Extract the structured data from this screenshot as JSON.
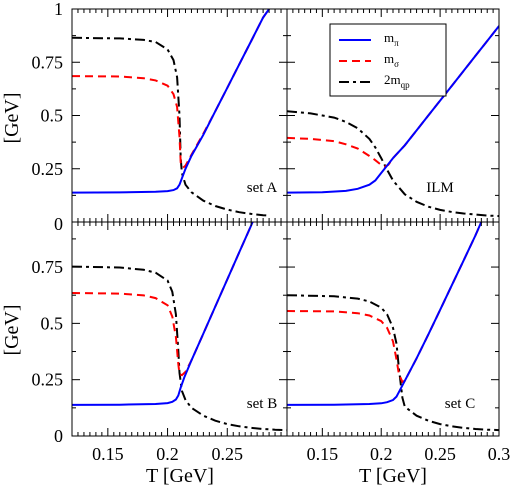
{
  "colors": {
    "m_pi": "#0000ff",
    "m_sigma": "#ff0000",
    "two_m_qp": "#000000"
  },
  "legend": {
    "placement": "top-right of upper-right panel",
    "entries": [
      {
        "key": "m_pi",
        "base": "m",
        "sub": "π",
        "style": "solid"
      },
      {
        "key": "m_sigma",
        "base": "m",
        "sub": "σ",
        "style": "dashed"
      },
      {
        "key": "two_m_qp",
        "base": "2m",
        "sub": "qp",
        "style": "dash-dot"
      }
    ]
  },
  "axes": {
    "xlabel": "T [GeV]",
    "ylabel": "[GeV]",
    "xlim": [
      0.12,
      0.3
    ],
    "ylim": [
      0,
      1
    ],
    "xticks_left": [
      "0.15",
      "0.2",
      "0.25"
    ],
    "xticks_right": [
      "0.15",
      "0.2",
      "0.25",
      "0.3"
    ],
    "yticks_top": [
      "0",
      "0.25",
      "0.5",
      "0.75",
      "1"
    ],
    "yticks_bottom": [
      "0",
      "0.25",
      "0.5",
      "0.75"
    ]
  },
  "chart_data": [
    {
      "type": "line",
      "panel": "top-left",
      "label": "set A",
      "series": [
        {
          "key": "m_pi",
          "x": [
            0.12,
            0.16,
            0.19,
            0.2,
            0.205,
            0.208,
            0.21,
            0.212,
            0.215,
            0.22,
            0.23,
            0.24,
            0.25,
            0.26,
            0.27,
            0.28,
            0.285
          ],
          "y": [
            0.138,
            0.139,
            0.142,
            0.145,
            0.15,
            0.158,
            0.175,
            0.205,
            0.25,
            0.31,
            0.41,
            0.52,
            0.63,
            0.74,
            0.85,
            0.96,
            1.0
          ]
        },
        {
          "key": "m_sigma",
          "x": [
            0.12,
            0.16,
            0.18,
            0.19,
            0.2,
            0.205,
            0.208,
            0.21,
            0.211,
            0.213,
            0.215,
            0.22,
            0.23,
            0.24,
            0.25,
            0.26,
            0.27,
            0.28,
            0.285
          ],
          "y": [
            0.685,
            0.683,
            0.675,
            0.665,
            0.64,
            0.6,
            0.54,
            0.4,
            0.28,
            0.255,
            0.265,
            0.315,
            0.415,
            0.52,
            0.63,
            0.74,
            0.85,
            0.96,
            1.0
          ]
        },
        {
          "key": "two_m_qp",
          "x": [
            0.12,
            0.16,
            0.18,
            0.19,
            0.2,
            0.205,
            0.208,
            0.21,
            0.211,
            0.212,
            0.215,
            0.22,
            0.23,
            0.24,
            0.25,
            0.26,
            0.27,
            0.28,
            0.285
          ],
          "y": [
            0.865,
            0.862,
            0.855,
            0.845,
            0.81,
            0.76,
            0.68,
            0.5,
            0.3,
            0.23,
            0.175,
            0.14,
            0.1,
            0.075,
            0.058,
            0.046,
            0.038,
            0.032,
            0.03
          ]
        }
      ]
    },
    {
      "type": "line",
      "panel": "top-right",
      "label": "ILM",
      "series": [
        {
          "key": "m_pi",
          "x": [
            0.12,
            0.15,
            0.17,
            0.18,
            0.19,
            0.195,
            0.2,
            0.205,
            0.21,
            0.22,
            0.23,
            0.24,
            0.25,
            0.26,
            0.27,
            0.28,
            0.29,
            0.3
          ],
          "y": [
            0.138,
            0.14,
            0.146,
            0.156,
            0.175,
            0.195,
            0.23,
            0.265,
            0.3,
            0.36,
            0.43,
            0.5,
            0.57,
            0.64,
            0.71,
            0.78,
            0.85,
            0.92
          ]
        },
        {
          "key": "m_sigma",
          "x": [
            0.12,
            0.14,
            0.16,
            0.17,
            0.18,
            0.19,
            0.195,
            0.2,
            0.203,
            0.206,
            0.21,
            0.22,
            0.23,
            0.24,
            0.25,
            0.26,
            0.27,
            0.28,
            0.29,
            0.3
          ],
          "y": [
            0.395,
            0.39,
            0.38,
            0.365,
            0.345,
            0.31,
            0.29,
            0.268,
            0.26,
            0.268,
            0.3,
            0.36,
            0.43,
            0.5,
            0.57,
            0.64,
            0.71,
            0.78,
            0.85,
            0.92
          ]
        },
        {
          "key": "two_m_qp",
          "x": [
            0.12,
            0.14,
            0.16,
            0.17,
            0.18,
            0.19,
            0.195,
            0.2,
            0.205,
            0.21,
            0.22,
            0.23,
            0.24,
            0.25,
            0.26,
            0.27,
            0.28,
            0.29,
            0.3
          ],
          "y": [
            0.52,
            0.51,
            0.49,
            0.47,
            0.44,
            0.39,
            0.35,
            0.3,
            0.245,
            0.195,
            0.13,
            0.095,
            0.072,
            0.057,
            0.047,
            0.04,
            0.035,
            0.03,
            0.028
          ]
        }
      ]
    },
    {
      "type": "line",
      "panel": "bottom-left",
      "label": "set B",
      "series": [
        {
          "key": "m_pi",
          "x": [
            0.12,
            0.16,
            0.19,
            0.2,
            0.204,
            0.207,
            0.209,
            0.211,
            0.214,
            0.22,
            0.23,
            0.24,
            0.25,
            0.26,
            0.27,
            0.275
          ],
          "y": [
            0.138,
            0.139,
            0.142,
            0.146,
            0.152,
            0.162,
            0.18,
            0.215,
            0.26,
            0.335,
            0.455,
            0.575,
            0.695,
            0.815,
            0.935,
            1.0
          ]
        },
        {
          "key": "m_sigma",
          "x": [
            0.12,
            0.16,
            0.18,
            0.19,
            0.2,
            0.204,
            0.207,
            0.209,
            0.21,
            0.212,
            0.215,
            0.22,
            0.23,
            0.24,
            0.25,
            0.26,
            0.27,
            0.275
          ],
          "y": [
            0.635,
            0.632,
            0.624,
            0.612,
            0.58,
            0.53,
            0.44,
            0.32,
            0.275,
            0.27,
            0.285,
            0.335,
            0.455,
            0.575,
            0.695,
            0.815,
            0.935,
            1.0
          ]
        },
        {
          "key": "two_m_qp",
          "x": [
            0.12,
            0.16,
            0.18,
            0.19,
            0.2,
            0.204,
            0.207,
            0.209,
            0.21,
            0.212,
            0.215,
            0.22,
            0.23,
            0.24,
            0.25,
            0.26,
            0.27,
            0.28,
            0.29,
            0.3
          ],
          "y": [
            0.752,
            0.748,
            0.738,
            0.725,
            0.69,
            0.64,
            0.54,
            0.38,
            0.28,
            0.2,
            0.16,
            0.125,
            0.09,
            0.068,
            0.053,
            0.043,
            0.036,
            0.031,
            0.028,
            0.026
          ]
        }
      ]
    },
    {
      "type": "line",
      "panel": "bottom-right",
      "label": "set C",
      "series": [
        {
          "key": "m_pi",
          "x": [
            0.12,
            0.16,
            0.19,
            0.2,
            0.205,
            0.21,
            0.213,
            0.216,
            0.22,
            0.23,
            0.24,
            0.25,
            0.26,
            0.27,
            0.28,
            0.285
          ],
          "y": [
            0.138,
            0.139,
            0.142,
            0.145,
            0.15,
            0.16,
            0.175,
            0.205,
            0.245,
            0.345,
            0.45,
            0.56,
            0.67,
            0.78,
            0.89,
            0.95
          ]
        },
        {
          "key": "m_sigma",
          "x": [
            0.12,
            0.16,
            0.18,
            0.19,
            0.2,
            0.205,
            0.21,
            0.213,
            0.215,
            0.218,
            0.22,
            0.23,
            0.24,
            0.25,
            0.26,
            0.27,
            0.28,
            0.285
          ],
          "y": [
            0.555,
            0.553,
            0.545,
            0.535,
            0.51,
            0.48,
            0.42,
            0.34,
            0.275,
            0.24,
            0.245,
            0.345,
            0.45,
            0.56,
            0.67,
            0.78,
            0.89,
            0.95
          ]
        },
        {
          "key": "two_m_qp",
          "x": [
            0.12,
            0.16,
            0.18,
            0.19,
            0.2,
            0.205,
            0.21,
            0.213,
            0.215,
            0.218,
            0.22,
            0.23,
            0.24,
            0.25,
            0.26,
            0.27,
            0.28,
            0.29,
            0.3
          ],
          "y": [
            0.625,
            0.62,
            0.61,
            0.597,
            0.57,
            0.54,
            0.48,
            0.41,
            0.3,
            0.17,
            0.13,
            0.09,
            0.068,
            0.053,
            0.043,
            0.036,
            0.031,
            0.028,
            0.026
          ]
        }
      ]
    }
  ]
}
